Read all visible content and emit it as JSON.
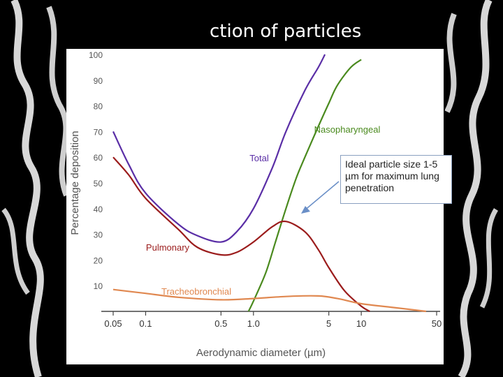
{
  "slide": {
    "title": "ction of particles"
  },
  "callout": {
    "text": "Ideal particle size 1-5 µm for maximum lung penetration"
  },
  "chart_data": {
    "type": "line",
    "xlabel": "Aerodynamic diameter (µm)",
    "ylabel": "Percentage deposition",
    "xscale": "log",
    "xlim": [
      0.05,
      50
    ],
    "ylim": [
      0,
      100
    ],
    "xticks": [
      {
        "value": 0.05,
        "label": "0.05"
      },
      {
        "value": 0.1,
        "label": "0.1"
      },
      {
        "value": 0.5,
        "label": "0.5"
      },
      {
        "value": 1.0,
        "label": "1.0"
      },
      {
        "value": 5,
        "label": "5"
      },
      {
        "value": 10,
        "label": "10"
      },
      {
        "value": 50,
        "label": "50"
      }
    ],
    "yticks": [
      10,
      20,
      30,
      40,
      50,
      60,
      70,
      80,
      90,
      100
    ],
    "grid": false,
    "series": [
      {
        "name": "Total",
        "color": "#5a2ea6",
        "points": [
          [
            0.05,
            70
          ],
          [
            0.07,
            57
          ],
          [
            0.1,
            46
          ],
          [
            0.2,
            34
          ],
          [
            0.3,
            29.5
          ],
          [
            0.5,
            27
          ],
          [
            0.7,
            31
          ],
          [
            1.0,
            40
          ],
          [
            1.5,
            56
          ],
          [
            2.0,
            70
          ],
          [
            3.0,
            86
          ],
          [
            4.0,
            95
          ],
          [
            4.6,
            100
          ]
        ]
      },
      {
        "name": "Nasopharyngeal",
        "color": "#4a8a1e",
        "points": [
          [
            0.9,
            0
          ],
          [
            1.0,
            4
          ],
          [
            1.3,
            15
          ],
          [
            1.6,
            27
          ],
          [
            2.0,
            40
          ],
          [
            2.5,
            52
          ],
          [
            3.0,
            60
          ],
          [
            4.0,
            72
          ],
          [
            5.0,
            81
          ],
          [
            6.0,
            88
          ],
          [
            8.0,
            95
          ],
          [
            10.0,
            98
          ]
        ]
      },
      {
        "name": "Pulmonary",
        "color": "#9b1c1c",
        "points": [
          [
            0.05,
            60
          ],
          [
            0.07,
            53
          ],
          [
            0.1,
            44
          ],
          [
            0.2,
            32
          ],
          [
            0.3,
            25
          ],
          [
            0.5,
            22
          ],
          [
            0.7,
            23
          ],
          [
            1.0,
            27
          ],
          [
            1.5,
            33
          ],
          [
            2.0,
            35
          ],
          [
            3.0,
            31
          ],
          [
            4.0,
            24
          ],
          [
            5.0,
            17
          ],
          [
            7.0,
            8
          ],
          [
            10.0,
            2
          ],
          [
            12.0,
            0
          ]
        ]
      },
      {
        "name": "Tracheobronchial",
        "color": "#e08850",
        "points": [
          [
            0.05,
            8.5
          ],
          [
            0.1,
            7
          ],
          [
            0.2,
            5.5
          ],
          [
            0.5,
            4.5
          ],
          [
            1.0,
            5
          ],
          [
            2.0,
            5.8
          ],
          [
            4.0,
            6
          ],
          [
            6.0,
            5
          ],
          [
            10.0,
            3
          ],
          [
            20.0,
            1.5
          ],
          [
            40.0,
            0
          ]
        ]
      }
    ]
  }
}
